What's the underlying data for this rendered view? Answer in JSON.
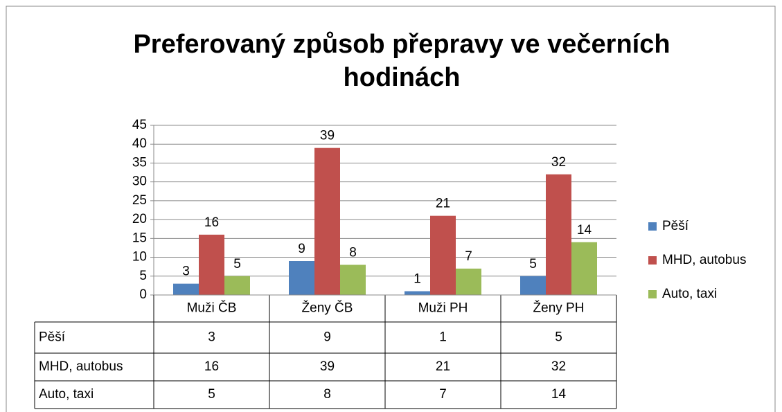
{
  "chart_data": {
    "type": "bar",
    "title": "Preferovaný způsob přepravy ve večerních hodinách",
    "categories": [
      "Muži ČB",
      "Ženy ČB",
      "Muži PH",
      "Ženy PH"
    ],
    "series": [
      {
        "name": "Pěší",
        "color": "#4f81bd",
        "values": [
          3,
          9,
          1,
          5
        ]
      },
      {
        "name": "MHD, autobus",
        "color": "#c0504d",
        "values": [
          16,
          39,
          21,
          32
        ]
      },
      {
        "name": "Auto, taxi",
        "color": "#9bbb59",
        "values": [
          5,
          8,
          7,
          14
        ]
      }
    ],
    "ylim": [
      0,
      45
    ],
    "yticks": [
      0,
      5,
      10,
      15,
      20,
      25,
      30,
      35,
      40,
      45
    ],
    "grid": true,
    "legend": "right",
    "data_table": true
  }
}
